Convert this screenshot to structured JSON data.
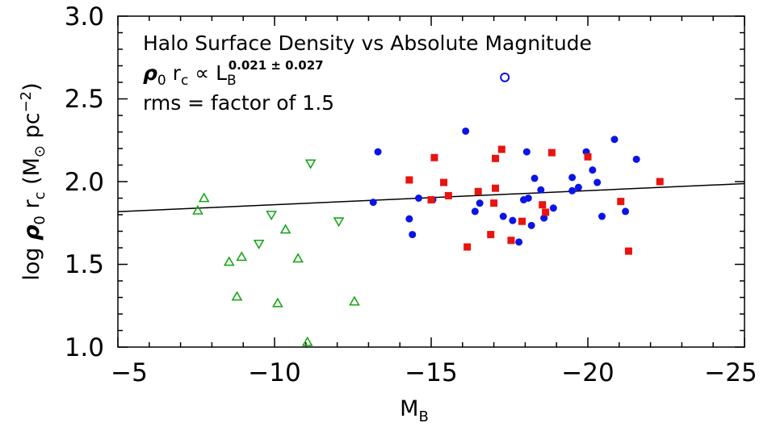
{
  "chart_data": {
    "type": "scatter",
    "title": "",
    "xlabel": "M",
    "xlabel_sub": "B",
    "ylabel_parts": {
      "log": "log",
      "rho": "ρ",
      "sub0": "0",
      "r": "r",
      "subc": "c",
      "unit_open": "(M",
      "sun": "⊙",
      "unit_mid": " pc",
      "sup": "−2",
      "unit_close": ")"
    },
    "xlim": [
      -5,
      -25
    ],
    "ylim": [
      1.0,
      3.0
    ],
    "x_ticks": [
      -5,
      -10,
      -15,
      -20,
      -25
    ],
    "x_tick_labels": [
      "−5",
      "−10",
      "−15",
      "−20",
      "−25"
    ],
    "y_ticks": [
      1.0,
      1.5,
      2.0,
      2.5,
      3.0
    ],
    "y_tick_labels": [
      "1.0",
      "1.5",
      "2.0",
      "2.5",
      "3.0"
    ],
    "grid": false,
    "annotations": {
      "line1": "Halo Surface Density vs Absolute Magnitude",
      "line2": {
        "rho": "ρ",
        "sub0": "0",
        "r": " r",
        "subc": "c",
        "prop": " ∝ L",
        "subB": "B",
        "sup": "0.021 ± 0.027"
      },
      "line3": "rms = factor of 1.5"
    },
    "fit_line": {
      "x": [
        -5,
        -25
      ],
      "y": [
        1.818,
        1.988
      ]
    },
    "series": [
      {
        "marker": "circle-filled",
        "color": "#0a14e6",
        "x": [
          -13.3,
          -13.15,
          -14.3,
          -14.4,
          -14.6,
          -15.05,
          -16.1,
          -16.4,
          -16.55,
          -17.3,
          -17.6,
          -17.8,
          -17.95,
          -18.05,
          -18.1,
          -18.2,
          -18.3,
          -18.5,
          -18.6,
          -18.9,
          -19.5,
          -19.5,
          -19.7,
          -19.95,
          -20.15,
          -20.3,
          -20.45,
          -20.85,
          -21.2,
          -21.55
        ],
        "y": [
          2.18,
          1.875,
          1.775,
          1.68,
          1.9,
          1.89,
          2.305,
          1.82,
          1.87,
          1.79,
          1.765,
          1.635,
          1.89,
          2.18,
          1.9,
          1.735,
          2.02,
          1.95,
          1.78,
          1.84,
          2.025,
          1.945,
          1.965,
          2.18,
          2.07,
          1.995,
          1.79,
          2.255,
          1.82,
          2.135
        ]
      },
      {
        "marker": "square-filled",
        "color": "#e8140f",
        "x": [
          -14.3,
          -15.0,
          -15.1,
          -15.4,
          -15.55,
          -16.15,
          -16.5,
          -16.9,
          -17.0,
          -17.05,
          -17.05,
          -17.25,
          -17.55,
          -17.9,
          -18.55,
          -18.65,
          -18.85,
          -20.0,
          -21.05,
          -21.3,
          -22.3
        ],
        "y": [
          2.01,
          1.89,
          2.145,
          1.995,
          1.915,
          1.605,
          1.94,
          1.68,
          1.87,
          1.96,
          2.14,
          2.195,
          1.645,
          1.76,
          1.86,
          1.815,
          2.175,
          2.15,
          1.88,
          1.58,
          2.0
        ]
      },
      {
        "marker": "triangle-up-open",
        "color": "#19a619",
        "x": [
          -7.55,
          -7.75,
          -8.55,
          -8.8,
          -8.95,
          -10.1,
          -10.35,
          -10.75,
          -11.05,
          -12.55
        ],
        "y": [
          1.825,
          1.9,
          1.515,
          1.305,
          1.545,
          1.265,
          1.71,
          1.535,
          1.03,
          1.275
        ]
      },
      {
        "marker": "triangle-down-open",
        "color": "#19a619",
        "x": [
          -9.5,
          -9.9,
          -11.15,
          -12.05
        ],
        "y": [
          1.625,
          1.8,
          2.11,
          1.76
        ]
      },
      {
        "marker": "circle-open",
        "color": "#0a14e6",
        "x": [
          -17.35
        ],
        "y": [
          2.63
        ]
      }
    ]
  }
}
